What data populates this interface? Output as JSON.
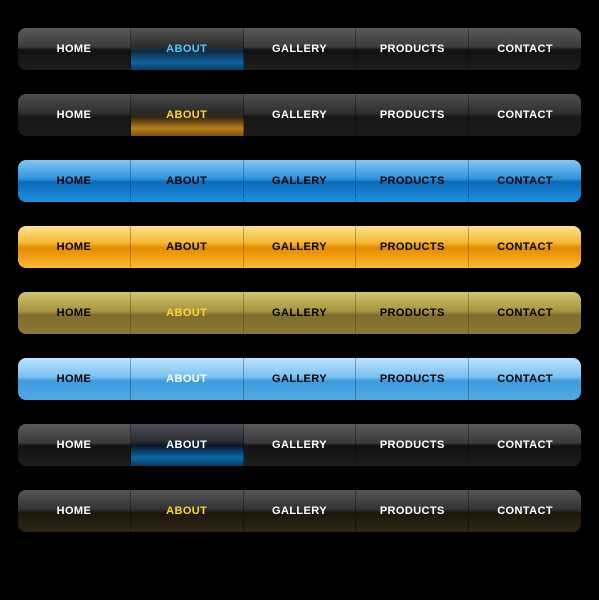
{
  "items": [
    "HOME",
    "ABOUT",
    "GALLERY",
    "PRODUCTS",
    "CONTACT"
  ],
  "colors": {
    "cyan": "#4dc9ff",
    "yellow": "#ffd633",
    "white": "#ffffff",
    "blue_glow": "#11629c",
    "orange_glow": "#b97f1c",
    "blue_full": "#1e8fe2",
    "orange_full": "#f7b733",
    "olive": "#a79541",
    "blue_soft": "#79c0f0",
    "dark": "#3b3b3b"
  },
  "bars": [
    {
      "id": "bar1",
      "active_index": 1,
      "cells": [
        "bg-dark",
        "bg-blue-glow",
        "bg-dark",
        "bg-dark",
        "bg-dark"
      ],
      "active_text": "txt-cyan",
      "arrow": false,
      "sep": ""
    },
    {
      "id": "bar2",
      "active_index": 1,
      "cells": [
        "bg-dark-under-yellow",
        "bg-yellow-glow",
        "bg-dark-under-yellow",
        "bg-dark-under-yellow",
        "bg-dark-under-yellow"
      ],
      "active_text": "txt-yellow",
      "arrow": true,
      "arrow_color": "#ffd633",
      "sep": ""
    },
    {
      "id": "bar3",
      "active_index": 1,
      "cells": [
        "bg-blue-full",
        "bg-blue-full",
        "bg-blue-full",
        "bg-blue-full",
        "bg-blue-full"
      ],
      "active_text": "",
      "arrow": true,
      "arrow_color": "#0c6ab8",
      "sep": "blue-sep"
    },
    {
      "id": "bar4",
      "active_index": 1,
      "cells": [
        "bg-orange-full",
        "bg-orange-full",
        "bg-orange-full",
        "bg-orange-full",
        "bg-orange-full"
      ],
      "active_text": "",
      "arrow": true,
      "arrow_color": "#e28b00",
      "sep": "orange-sep"
    },
    {
      "id": "bar5",
      "active_index": 1,
      "cells": [
        "bg-olive",
        "bg-olive",
        "bg-olive",
        "bg-olive",
        "bg-olive"
      ],
      "active_text": "txt-yellow",
      "arrow": false,
      "sep": "orange-sep"
    },
    {
      "id": "bar6",
      "active_index": 1,
      "cells": [
        "bg-blue-soft",
        "bg-blue-soft",
        "bg-blue-soft",
        "bg-blue-soft",
        "bg-blue-soft"
      ],
      "active_text": "txt-white",
      "arrow": true,
      "arrow_color": "#e8f4ff",
      "sep": "blue-sep"
    },
    {
      "id": "bar7",
      "active_index": 1,
      "cells": [
        "bg-dark",
        "bg-dark-blue-deep",
        "bg-dark",
        "bg-dark",
        "bg-dark"
      ],
      "active_text": "txt-white",
      "arrow": false,
      "sep": ""
    },
    {
      "id": "bar8",
      "active_index": 1,
      "cells": [
        "bg-dark-warm",
        "bg-dark-warm",
        "bg-dark-warm",
        "bg-dark-warm",
        "bg-dark-warm"
      ],
      "active_text": "txt-yellow",
      "arrow": false,
      "sep": ""
    }
  ]
}
